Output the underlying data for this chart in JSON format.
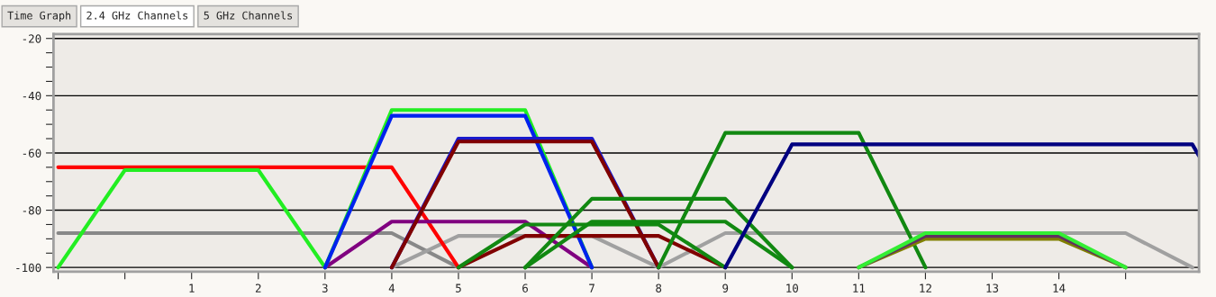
{
  "chart_data": {
    "type": "line",
    "annotations": [
      "Time Graph",
      "2.4 GHz Channels",
      "5 GHz Channels"
    ],
    "xlim": [
      -1.07,
      16.1
    ],
    "ylim": [
      -101.5,
      -18.5
    ],
    "xticks": [
      {
        "value": -1,
        "label": null
      },
      {
        "value": 0,
        "label": null
      },
      1,
      2,
      3,
      4,
      5,
      6,
      7,
      8,
      9,
      10,
      11,
      12,
      13,
      14,
      {
        "value": 15,
        "label": null
      }
    ],
    "yticks": [
      -20,
      {
        "value": -25,
        "label": null
      },
      {
        "value": -30,
        "label": null
      },
      {
        "value": -35,
        "label": null
      },
      -40,
      {
        "value": -45,
        "label": null
      },
      {
        "value": -50,
        "label": null
      },
      {
        "value": -55,
        "label": null
      },
      -60,
      {
        "value": -65,
        "label": null
      },
      {
        "value": -70,
        "label": null
      },
      {
        "value": -75,
        "label": null
      },
      -80,
      {
        "value": -85,
        "label": null
      },
      {
        "value": -90,
        "label": null
      },
      {
        "value": -95,
        "label": null
      },
      -100
    ],
    "grid": "y",
    "legend": false,
    "line_style": "solid",
    "marker": "none",
    "series": [
      {
        "color": "#888888",
        "x": [
          -1,
          4,
          5
        ],
        "values": [
          -88,
          -88,
          -100
        ]
      },
      {
        "color": "#a0a0a0",
        "x": [
          4,
          5,
          7,
          8
        ],
        "values": [
          -100,
          -89,
          -89,
          -100
        ]
      },
      {
        "color": "#a0a0a0",
        "x": [
          8,
          9,
          15,
          16
        ],
        "values": [
          -100,
          -88,
          -88,
          -100
        ]
      },
      {
        "color": "#ff0000",
        "x": [
          -1,
          4,
          5
        ],
        "values": [
          -65,
          -65,
          -100
        ]
      },
      {
        "color": "#22ee22",
        "x": [
          -1,
          0,
          2,
          3
        ],
        "values": [
          -100,
          -66,
          -66,
          -100
        ]
      },
      {
        "color": "#800080",
        "x": [
          3,
          4,
          6,
          7
        ],
        "values": [
          -100,
          -84,
          -84,
          -100
        ]
      },
      {
        "color": "#22ee22",
        "x": [
          3,
          4,
          6,
          7
        ],
        "values": [
          -100,
          -45,
          -45,
          -100
        ]
      },
      {
        "color": "#0022ee",
        "x": [
          3,
          4,
          6,
          7
        ],
        "values": [
          -100,
          -47,
          -47,
          -100
        ]
      },
      {
        "color": "#1a1acc",
        "x": [
          4,
          5,
          7,
          8
        ],
        "values": [
          -100,
          -55,
          -55,
          -100
        ]
      },
      {
        "color": "#800000",
        "x": [
          4,
          5,
          7,
          8
        ],
        "values": [
          -100,
          -56,
          -56,
          -100
        ]
      },
      {
        "color": "#800000",
        "x": [
          5,
          6,
          8,
          9
        ],
        "values": [
          -100,
          -89,
          -89,
          -100
        ]
      },
      {
        "color": "#118811",
        "x": [
          5,
          6,
          8,
          9
        ],
        "values": [
          -100,
          -85,
          -85,
          -100
        ]
      },
      {
        "color": "#118811",
        "x": [
          6,
          7,
          9,
          10
        ],
        "values": [
          -100,
          -84,
          -84,
          -100
        ]
      },
      {
        "color": "#118811",
        "x": [
          6,
          7,
          9,
          10
        ],
        "values": [
          -100,
          -76,
          -76,
          -100
        ]
      },
      {
        "color": "#118811",
        "x": [
          8,
          9,
          11,
          12
        ],
        "values": [
          -100,
          -53,
          -53,
          -100
        ]
      },
      {
        "color": "#000080",
        "x": [
          9,
          10,
          16,
          16.1
        ],
        "values": [
          -100,
          -57,
          -57,
          -61
        ]
      },
      {
        "color": "#808000",
        "x": [
          11,
          12,
          14,
          15
        ],
        "values": [
          -100,
          -90,
          -90,
          -100
        ]
      },
      {
        "color": "#603060",
        "x": [
          11,
          12,
          14,
          15
        ],
        "values": [
          -100,
          -89,
          -89,
          -100
        ]
      },
      {
        "color": "#33ee33",
        "x": [
          11,
          12,
          14,
          15
        ],
        "values": [
          -100,
          -88,
          -88,
          -100
        ]
      }
    ]
  }
}
